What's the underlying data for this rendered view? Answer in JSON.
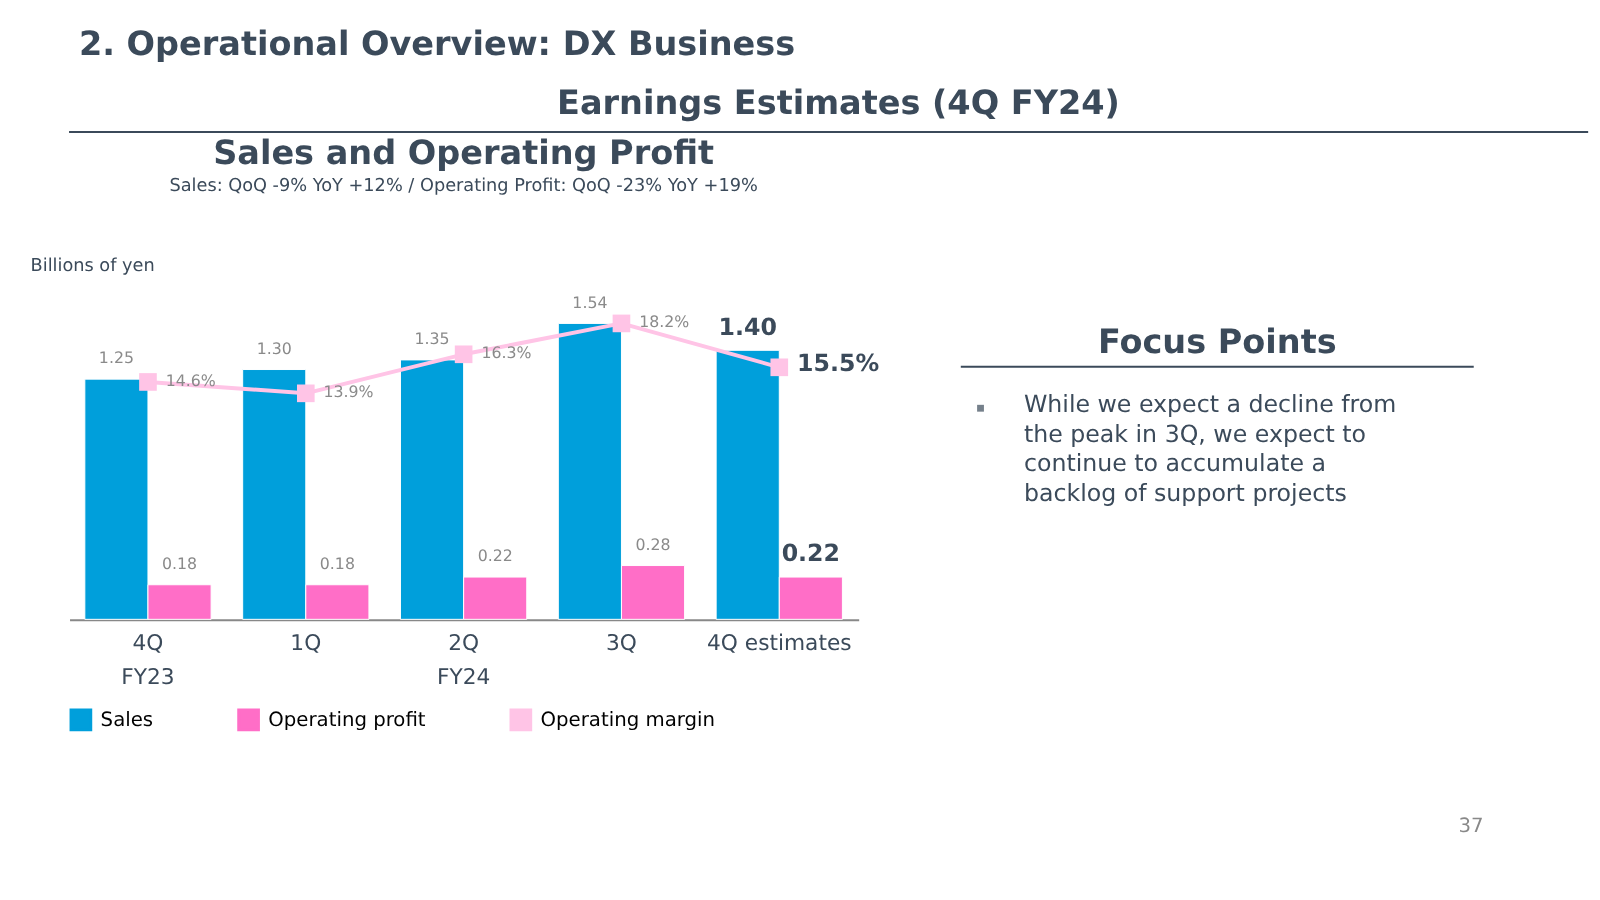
{
  "chart_data": [
    {
      "type": "bar",
      "title": "Sales and Operating Profit",
      "subtitle": "Sales: QoQ -9% YoY +12% / Operating Profit: QoQ -23% YoY +19%",
      "ylabel": "Billions of yen",
      "categories": [
        "4Q",
        "1Q",
        "2Q",
        "3Q",
        "4Q estimates"
      ],
      "series": [
        {
          "name": "Sales",
          "color": "#009fdb",
          "values": [
            1.25,
            1.3,
            1.35,
            1.54,
            1.4
          ],
          "value_labels": [
            "1.25",
            "1.30",
            "1.35",
            "1.54",
            "1.40"
          ]
        },
        {
          "name": "Operating profit",
          "color": "#ff6ec7",
          "values": [
            0.18,
            0.18,
            0.22,
            0.28,
            0.22
          ],
          "value_labels": [
            "0.18",
            "0.18",
            "0.22",
            "0.28",
            "0.22"
          ]
        },
        {
          "name": "Operating margin",
          "type": "line",
          "axis": "y2",
          "color": "#ffc4e6",
          "values": [
            14.6,
            13.9,
            16.3,
            18.2,
            15.5
          ],
          "value_labels": [
            "14.6%",
            "13.9%",
            "16.3%",
            "18.2%",
            "15.5%"
          ]
        }
      ],
      "marker": "square",
      "grid": false,
      "legend": "bottom",
      "tick_labels": "x",
      "annotations": [
        "2. Operational Overview: DX Business",
        "Earnings Estimates (4Q FY24)",
        "FY23",
        "FY24"
      ]
    },
    {
      "type": "other",
      "title": "Focus Points",
      "annotations": [
        "While we expect a decline from the peak in 3Q, we expect to continue to accumulate a backlog of support projects",
        "37"
      ]
    }
  ]
}
